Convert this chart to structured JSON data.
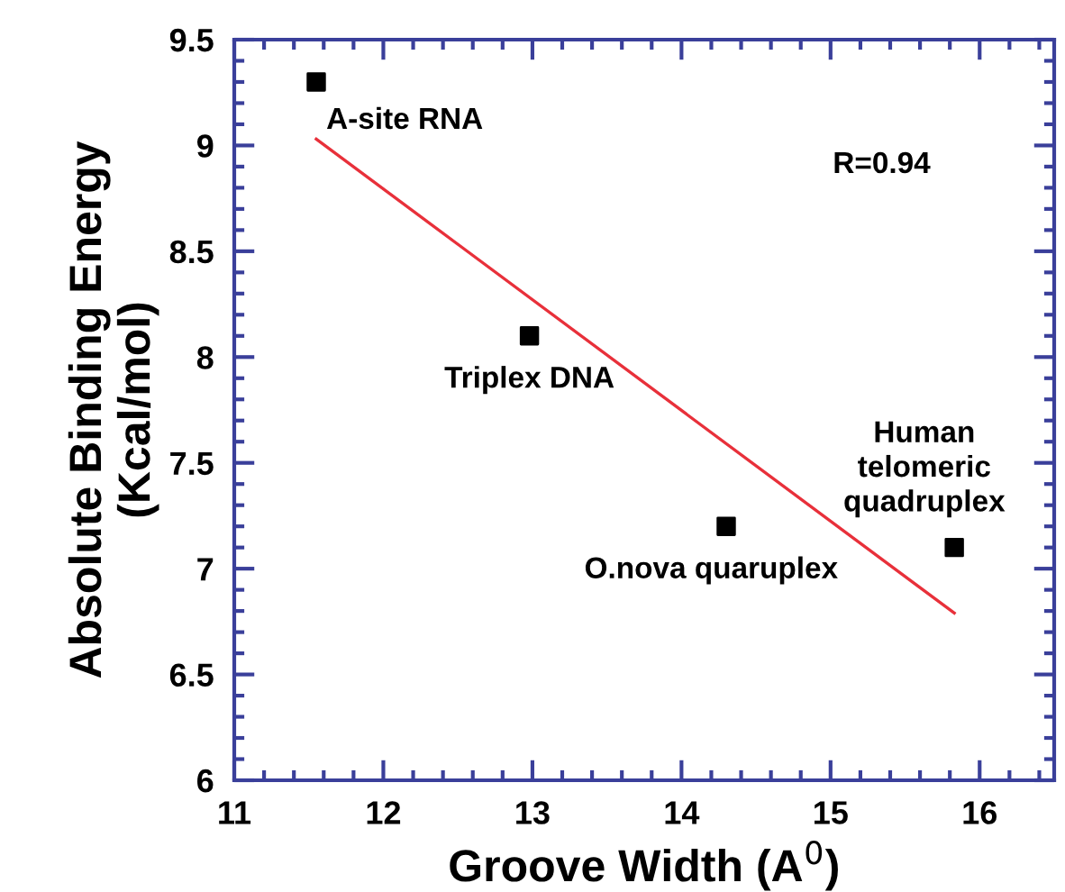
{
  "chart_data": {
    "type": "scatter",
    "xlabel": "Groove Width (A$^{0}$)",
    "ylabel": "Absolute Binding Energy\n(Kcal/mol)",
    "x": [
      11.55,
      12.98,
      14.3,
      15.83
    ],
    "series": [
      {
        "color": "#000000",
        "marker": "square",
        "values": [
          9.3,
          8.1,
          7.2,
          7.1
        ]
      },
      {
        "type": "line",
        "color": "#e8303a",
        "marker": "none",
        "line_style": "solid",
        "x": [
          11.55,
          15.83
        ],
        "values": [
          9.03,
          6.79
        ]
      }
    ],
    "annotations": [
      {
        "text": "A-site RNA",
        "x": 11.55,
        "y": 9.3
      },
      {
        "text": "Triplex DNA",
        "x": 12.98,
        "y": 8.1
      },
      {
        "text": "O.nova quaruplex",
        "x": 14.3,
        "y": 7.2
      },
      {
        "text": "Human\ntelomeric\nquadruplex",
        "x": 15.83,
        "y": 7.1
      },
      "R=0.94"
    ],
    "xlim": [
      11,
      16.5
    ],
    "xticks": [
      11,
      12,
      13,
      14,
      15,
      16
    ],
    "ylim": [
      6,
      9.5
    ],
    "yticks": [
      6,
      {
        "value": 6.5,
        "label": "6.5"
      },
      7,
      {
        "value": 7.5,
        "label": "7.5"
      },
      8,
      {
        "value": 8.5,
        "label": "8.5"
      },
      9,
      {
        "value": 9.5,
        "label": "9.5"
      }
    ],
    "grid": false,
    "legend": false
  }
}
